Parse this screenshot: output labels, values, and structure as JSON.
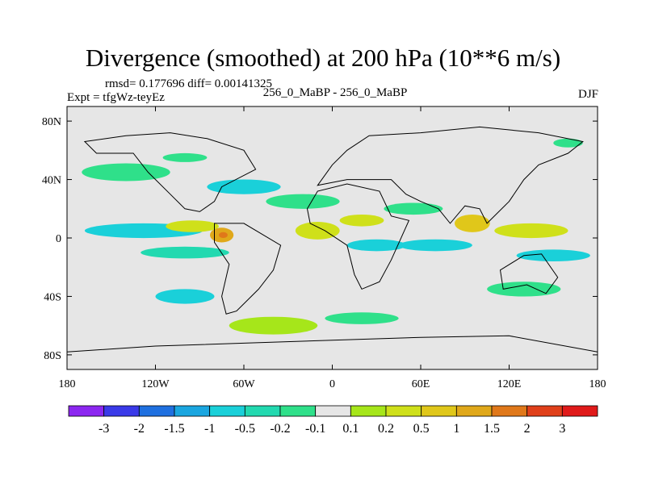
{
  "chart_data": {
    "type": "contour_map",
    "title": "Divergence (smoothed) at 200 hPa (10**6 m/s)",
    "rmsd_label": "rmsd= 0.177696 diff= 0.00141325",
    "experiment_label": "Expt = tfgWz-teyEz",
    "case_label": "256_0_MaBP - 256_0_MaBP",
    "season": "DJF",
    "xlim": [
      -180,
      180
    ],
    "ylim": [
      -90,
      90
    ],
    "x_ticks": [
      {
        "value": -180,
        "label": "180"
      },
      {
        "value": -120,
        "label": "120W"
      },
      {
        "value": -60,
        "label": "60W"
      },
      {
        "value": 0,
        "label": "0"
      },
      {
        "value": 60,
        "label": "60E"
      },
      {
        "value": 120,
        "label": "120E"
      },
      {
        "value": 180,
        "label": "180"
      }
    ],
    "y_ticks": [
      {
        "value": 80,
        "label": "80N"
      },
      {
        "value": 40,
        "label": "40N"
      },
      {
        "value": 0,
        "label": "0"
      },
      {
        "value": -40,
        "label": "40S"
      },
      {
        "value": -80,
        "label": "80S"
      }
    ],
    "colorbar": {
      "colors": [
        "#8c27f0",
        "#3a3ae8",
        "#1f70e0",
        "#1aa6e0",
        "#1ad0d9",
        "#22d9b0",
        "#2fe08a",
        "#e6e6e6",
        "#a6e61a",
        "#cfe01a",
        "#e0c71a",
        "#e0a81a",
        "#e0781a",
        "#e0401a",
        "#e01a1a"
      ],
      "labels": [
        "-3",
        "-2",
        "-1.5",
        "-1",
        "-0.5",
        "-0.2",
        "-0.1",
        "0.1",
        "0.2",
        "0.5",
        "1",
        "1.5",
        "2",
        "3"
      ]
    },
    "features": [
      {
        "name": "subtropical-cyan-band",
        "lon": -128,
        "lat": 5,
        "rlon": 40,
        "rlat": 5,
        "color": "#1ad0d9"
      },
      {
        "name": "subtropical-green-band",
        "lon": -100,
        "lat": -10,
        "rlon": 30,
        "rlat": 4,
        "color": "#22d9b0"
      },
      {
        "name": "yellow-blob-west",
        "lon": -95,
        "lat": 8,
        "rlon": 18,
        "rlat": 4,
        "color": "#cfe01a"
      },
      {
        "name": "orange-convergence-core",
        "lon": -75,
        "lat": 2,
        "rlon": 8,
        "rlat": 5,
        "color": "#e0a81a"
      },
      {
        "name": "red-divergence-core",
        "lon": -74,
        "lat": 2,
        "rlon": 3,
        "rlat": 2,
        "color": "#e0781a"
      },
      {
        "name": "mid-lat-green-north",
        "lon": -140,
        "lat": 45,
        "rlon": 30,
        "rlat": 6,
        "color": "#2fe08a"
      },
      {
        "name": "cyan-north-pacific",
        "lon": -60,
        "lat": 35,
        "rlon": 25,
        "rlat": 5,
        "color": "#1ad0d9"
      },
      {
        "name": "green-atlantic",
        "lon": -20,
        "lat": 25,
        "rlon": 25,
        "rlat": 5,
        "color": "#2fe08a"
      },
      {
        "name": "yellow-atlantic",
        "lon": -10,
        "lat": 5,
        "rlon": 15,
        "rlat": 6,
        "color": "#cfe01a"
      },
      {
        "name": "cyan-africa",
        "lon": 30,
        "lat": -5,
        "rlon": 20,
        "rlat": 4,
        "color": "#1ad0d9"
      },
      {
        "name": "yellow-africa",
        "lon": 20,
        "lat": 12,
        "rlon": 15,
        "rlat": 4,
        "color": "#cfe01a"
      },
      {
        "name": "orange-asia",
        "lon": 95,
        "lat": 10,
        "rlon": 12,
        "rlat": 6,
        "color": "#e0c71a"
      },
      {
        "name": "cyan-indian",
        "lon": 70,
        "lat": -5,
        "rlon": 25,
        "rlat": 4,
        "color": "#1ad0d9"
      },
      {
        "name": "green-indian",
        "lon": 55,
        "lat": 20,
        "rlon": 20,
        "rlat": 4,
        "color": "#2fe08a"
      },
      {
        "name": "yellow-west-pacific",
        "lon": 135,
        "lat": 5,
        "rlon": 25,
        "rlat": 5,
        "color": "#cfe01a"
      },
      {
        "name": "cyan-west-pacific",
        "lon": 150,
        "lat": -12,
        "rlon": 25,
        "rlat": 4,
        "color": "#1ad0d9"
      },
      {
        "name": "green-south-pacific",
        "lon": 130,
        "lat": -35,
        "rlon": 25,
        "rlat": 5,
        "color": "#2fe08a"
      },
      {
        "name": "green-southern-ocean",
        "lon": -40,
        "lat": -60,
        "rlon": 30,
        "rlat": 6,
        "color": "#a6e61a"
      },
      {
        "name": "green-south-atlantic",
        "lon": 20,
        "lat": -55,
        "rlon": 25,
        "rlat": 4,
        "color": "#2fe08a"
      },
      {
        "name": "cyan-south-america",
        "lon": -100,
        "lat": -40,
        "rlon": 20,
        "rlat": 5,
        "color": "#1ad0d9"
      },
      {
        "name": "green-arctic",
        "lon": 160,
        "lat": 65,
        "rlon": 10,
        "rlat": 3,
        "color": "#2fe08a"
      },
      {
        "name": "green-high-north",
        "lon": -100,
        "lat": 55,
        "rlon": 15,
        "rlat": 3,
        "color": "#2fe08a"
      }
    ]
  }
}
